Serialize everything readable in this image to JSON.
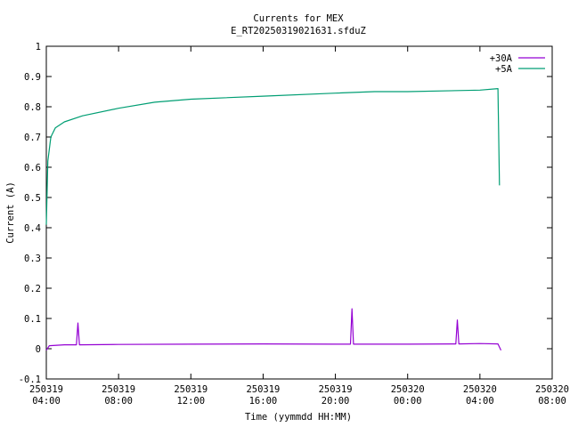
{
  "chart_data": {
    "type": "line",
    "title": "Currents for MEX",
    "subtitle": "E_RT20250319021631.sfduZ",
    "xlabel": "Time (yymmdd HH:MM)",
    "ylabel": "Current (A)",
    "xlim": [
      "2025-03-19 04:00",
      "2025-03-20 08:00"
    ],
    "ylim": [
      -0.1,
      1.0
    ],
    "grid": false,
    "legend_position": "top-right",
    "y_ticks": [
      "-0.1",
      "0",
      "0.1",
      "0.2",
      "0.3",
      "0.4",
      "0.5",
      "0.6",
      "0.7",
      "0.8",
      "0.9",
      "1"
    ],
    "x_ticks": [
      {
        "date": "250319",
        "time": "04:00"
      },
      {
        "date": "250319",
        "time": "08:00"
      },
      {
        "date": "250319",
        "time": "12:00"
      },
      {
        "date": "250319",
        "time": "16:00"
      },
      {
        "date": "250319",
        "time": "20:00"
      },
      {
        "date": "250320",
        "time": "00:00"
      },
      {
        "date": "250320",
        "time": "04:00"
      },
      {
        "date": "250320",
        "time": "08:00"
      }
    ],
    "x_tick_hours": [
      0,
      4,
      8,
      12,
      16,
      20,
      24,
      28
    ],
    "series": [
      {
        "name": "+30A",
        "color": "#9400d3",
        "points": [
          [
            "2025-03-19 04:00",
            -0.005
          ],
          [
            "2025-03-19 04:10",
            0.01
          ],
          [
            "2025-03-19 05:00",
            0.013
          ],
          [
            "2025-03-19 05:40",
            0.013
          ],
          [
            "2025-03-19 05:45",
            0.085
          ],
          [
            "2025-03-19 05:50",
            0.013
          ],
          [
            "2025-03-19 08:00",
            0.014
          ],
          [
            "2025-03-19 12:00",
            0.015
          ],
          [
            "2025-03-19 16:00",
            0.016
          ],
          [
            "2025-03-19 20:00",
            0.015
          ],
          [
            "2025-03-19 20:50",
            0.015
          ],
          [
            "2025-03-19 20:55",
            0.132
          ],
          [
            "2025-03-19 21:00",
            0.015
          ],
          [
            "2025-03-19 22:00",
            0.015
          ],
          [
            "2025-03-20 00:00",
            0.015
          ],
          [
            "2025-03-20 02:40",
            0.016
          ],
          [
            "2025-03-20 02:45",
            0.095
          ],
          [
            "2025-03-20 02:50",
            0.016
          ],
          [
            "2025-03-20 04:00",
            0.017
          ],
          [
            "2025-03-20 05:00",
            0.016
          ],
          [
            "2025-03-20 05:10",
            -0.005
          ]
        ]
      },
      {
        "name": "+5A",
        "color": "#009e73",
        "points": [
          [
            "2025-03-19 04:00",
            0.41
          ],
          [
            "2025-03-19 04:05",
            0.62
          ],
          [
            "2025-03-19 04:15",
            0.7
          ],
          [
            "2025-03-19 04:30",
            0.73
          ],
          [
            "2025-03-19 05:00",
            0.75
          ],
          [
            "2025-03-19 06:00",
            0.77
          ],
          [
            "2025-03-19 08:00",
            0.795
          ],
          [
            "2025-03-19 10:00",
            0.815
          ],
          [
            "2025-03-19 12:00",
            0.825
          ],
          [
            "2025-03-19 16:00",
            0.835
          ],
          [
            "2025-03-19 20:00",
            0.845
          ],
          [
            "2025-03-19 22:10",
            0.85
          ],
          [
            "2025-03-20 00:00",
            0.85
          ],
          [
            "2025-03-20 04:00",
            0.855
          ],
          [
            "2025-03-20 05:00",
            0.86
          ],
          [
            "2025-03-20 05:05",
            0.54
          ]
        ]
      }
    ]
  }
}
